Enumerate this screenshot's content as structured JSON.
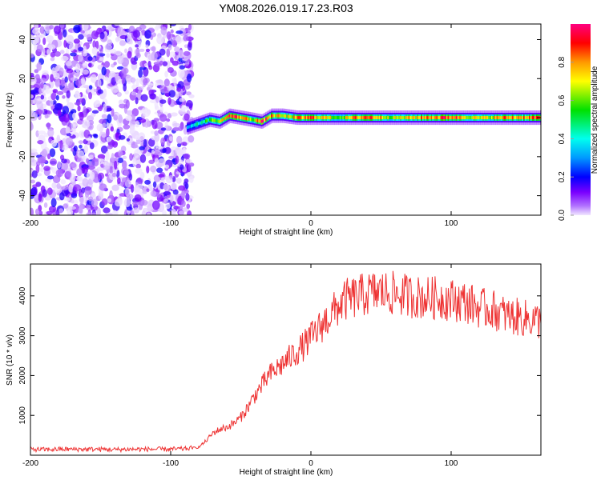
{
  "chart_data": [
    {
      "type": "heatmap",
      "title": "YM08.2026.019.17.23.R03",
      "xlabel": "Height of straight line (km)",
      "ylabel": "Frequency (Hz)",
      "xlim": [
        -200,
        164
      ],
      "ylim": [
        -50,
        48
      ],
      "xticks": [
        -200,
        -100,
        0,
        100
      ],
      "xtick_labels": [
        "-200",
        "-100",
        "0",
        "100"
      ],
      "yticks": [
        -40,
        -20,
        0,
        20,
        40
      ],
      "ytick_labels": [
        "-40",
        "-20",
        "0",
        "20",
        "40"
      ],
      "noise_region_x": [
        -200,
        -85
      ],
      "ridge": {
        "x": [
          -88,
          -80,
          -72,
          -65,
          -58,
          -50,
          -42,
          -35,
          -28,
          -20,
          -10,
          0,
          20,
          40,
          60,
          80,
          100,
          120,
          140,
          164
        ],
        "freq_hz": [
          -5,
          -3,
          -1,
          -2,
          1,
          0,
          -1,
          -2,
          1,
          1,
          0,
          0,
          0,
          0,
          0,
          0,
          0,
          0,
          0,
          0
        ],
        "amplitude": [
          0.35,
          0.45,
          0.6,
          0.7,
          0.95,
          0.9,
          0.7,
          0.95,
          0.85,
          0.7,
          0.8,
          0.9,
          0.65,
          0.95,
          0.7,
          0.85,
          0.95,
          0.7,
          0.85,
          0.9
        ]
      },
      "colorbar": {
        "label": "Normalized spectral amplitude",
        "range": [
          0,
          1
        ],
        "ticks": [
          0.0,
          0.2,
          0.4,
          0.6,
          0.8
        ],
        "tick_labels": [
          "0.0",
          "0.2",
          "0.4",
          "0.6",
          "0.8"
        ]
      }
    },
    {
      "type": "line",
      "xlabel": "Height of straight line (km)",
      "ylabel": "SNR (10 * v/v)",
      "xlim": [
        -200,
        164
      ],
      "ylim": [
        0,
        4800
      ],
      "xticks": [
        -200,
        -100,
        0,
        100
      ],
      "xtick_labels": [
        "-200",
        "-100",
        "0",
        "100"
      ],
      "yticks": [
        1000,
        2000,
        3000,
        4000
      ],
      "ytick_labels": [
        "1000",
        "2000",
        "3000",
        "4000"
      ],
      "series": [
        {
          "name": "SNR",
          "color": "#ee3333",
          "x": [
            -200,
            -190,
            -180,
            -170,
            -160,
            -150,
            -140,
            -130,
            -120,
            -110,
            -100,
            -90,
            -80,
            -75,
            -70,
            -65,
            -60,
            -55,
            -50,
            -45,
            -40,
            -35,
            -30,
            -25,
            -20,
            -15,
            -10,
            -5,
            0,
            5,
            10,
            15,
            20,
            25,
            30,
            40,
            50,
            60,
            70,
            80,
            90,
            100,
            110,
            120,
            130,
            140,
            150,
            160,
            164
          ],
          "values": [
            150,
            140,
            150,
            150,
            150,
            150,
            140,
            150,
            150,
            150,
            150,
            160,
            200,
            350,
            550,
            650,
            700,
            800,
            950,
            1200,
            1500,
            1750,
            2000,
            2150,
            2300,
            2450,
            2600,
            2750,
            2950,
            3150,
            3350,
            3550,
            3750,
            3900,
            3950,
            4050,
            4100,
            4050,
            4000,
            3950,
            3950,
            3900,
            3850,
            3700,
            3650,
            3500,
            3450,
            3400,
            3350
          ]
        }
      ]
    }
  ]
}
